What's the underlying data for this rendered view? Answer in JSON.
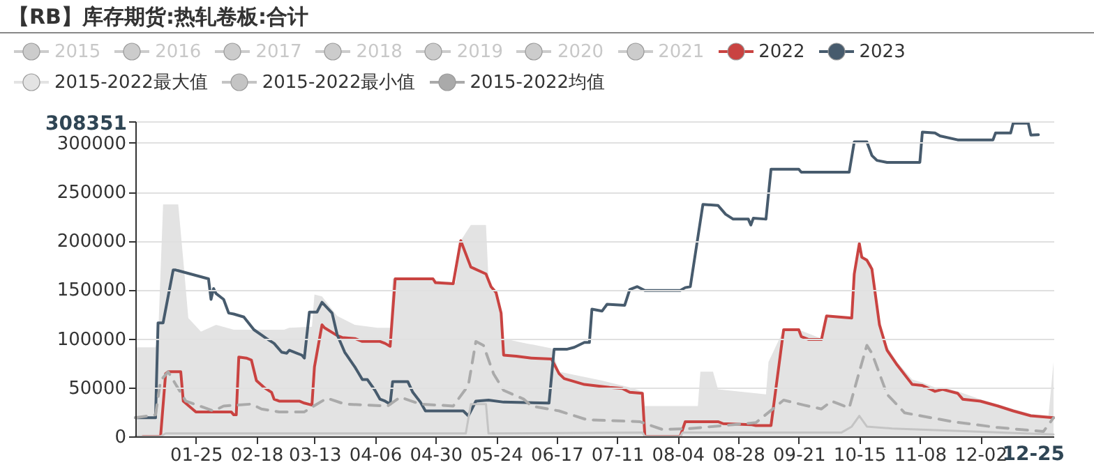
{
  "chart_data": {
    "type": "line",
    "title": "【RB】库存期货:热轧卷板:合计",
    "xlim": [
      "--01-01",
      "--12-31"
    ],
    "xticks": [
      {
        "value": "--01-25",
        "label": "01-25"
      },
      {
        "value": "--02-18",
        "label": "02-18"
      },
      {
        "value": "--03-13",
        "label": "03-13"
      },
      {
        "value": "--04-06",
        "label": "04-06"
      },
      {
        "value": "--04-30",
        "label": "04-30"
      },
      {
        "value": "--05-24",
        "label": "05-24"
      },
      {
        "value": "--06-17",
        "label": "06-17"
      },
      {
        "value": "--07-11",
        "label": "07-11"
      },
      {
        "value": "--08-04",
        "label": "08-04"
      },
      {
        "value": "--08-28",
        "label": "08-28"
      },
      {
        "value": "--09-21",
        "label": "09-21"
      },
      {
        "value": "--10-15",
        "label": "10-15"
      },
      {
        "value": "--11-08",
        "label": "11-08"
      },
      {
        "value": "--12-02",
        "label": "12-02"
      }
    ],
    "ylim": [
      0,
      322000
    ],
    "yticks": [
      0,
      50000,
      100000,
      150000,
      200000,
      250000,
      300000,
      {
        "value": 322000,
        "label": null
      }
    ],
    "grid": "y",
    "legend": "top left",
    "annotations": [
      "308351",
      "12-25"
    ],
    "series": [
      {
        "name": "2015",
        "color": "#cccccc"
      },
      {
        "name": "2016",
        "color": "#cccccc"
      },
      {
        "name": "2017",
        "color": "#cccccc"
      },
      {
        "name": "2018",
        "color": "#cccccc"
      },
      {
        "name": "2019",
        "color": "#cccccc"
      },
      {
        "name": "2020",
        "color": "#cccccc"
      },
      {
        "name": "2021",
        "color": "#cccccc"
      },
      {
        "name": "2022",
        "color": "#c94341",
        "x": [
          "--01-04",
          "--01-11",
          "--01-13",
          "--01-14",
          "--01-19",
          "--01-20",
          "--01-25",
          "--02-08",
          "--02-09",
          "--02-10",
          "--02-11",
          "--02-14",
          "--02-16",
          "--02-18",
          "--02-21",
          "--02-24",
          "--02-25",
          "--02-27",
          "--03-07",
          "--03-09",
          "--03-12",
          "--03-13",
          "--03-16",
          "--03-17",
          "--03-22",
          "--03-24",
          "--03-29",
          "--04-01",
          "--04-08",
          "--04-10",
          "--04-12",
          "--04-14",
          "--04-29",
          "--04-30",
          "--05-07",
          "--05-10",
          "--05-14",
          "--05-20",
          "--05-22",
          "--05-24",
          "--05-26",
          "--05-27",
          "--06-01",
          "--06-07",
          "--06-15",
          "--06-18",
          "--06-20",
          "--06-28",
          "--07-08",
          "--07-13",
          "--07-16",
          "--07-21",
          "--07-22",
          "--08-05",
          "--08-07",
          "--08-20",
          "--08-22",
          "--09-02",
          "--09-04",
          "--09-10",
          "--09-15",
          "--09-21",
          "--09-22",
          "--09-25",
          "--09-30",
          "--10-02",
          "--10-12",
          "--10-13",
          "--10-15",
          "--10-16",
          "--10-18",
          "--10-20",
          "--10-23",
          "--10-26",
          "--10-30",
          "--11-05",
          "--11-09",
          "--11-14",
          "--11-17",
          "--11-23",
          "--11-25",
          "--12-02",
          "--12-09",
          "--12-15",
          "--12-22",
          "--12-31"
        ],
        "values": [
          0,
          0,
          64000,
          66000,
          66000,
          36000,
          25000,
          25000,
          22000,
          22000,
          81000,
          80000,
          78000,
          57000,
          50000,
          45000,
          38000,
          36000,
          36000,
          34000,
          32000,
          71000,
          114000,
          111000,
          103000,
          101000,
          100000,
          97000,
          97000,
          95000,
          92000,
          161000,
          161000,
          157000,
          156000,
          200000,
          173000,
          166000,
          153000,
          147000,
          126000,
          83000,
          82000,
          80000,
          79000,
          64000,
          59000,
          53000,
          50000,
          49000,
          45000,
          44000,
          0,
          0,
          15000,
          15000,
          13000,
          12000,
          11000,
          11000,
          109000,
          109000,
          102000,
          99000,
          99000,
          123000,
          121000,
          166000,
          197000,
          183000,
          180000,
          171000,
          114000,
          88000,
          73000,
          53000,
          52000,
          46000,
          48000,
          44000,
          38000,
          36000,
          31000,
          26000,
          21000,
          19000
        ]
      },
      {
        "name": "2023",
        "color": "#475b6d",
        "x": [
          "--01-01",
          "--01-09",
          "--01-10",
          "--01-12",
          "--01-16",
          "--01-17",
          "--01-30",
          "--01-31",
          "--02-01",
          "--02-02",
          "--02-05",
          "--02-07",
          "--02-09",
          "--02-13",
          "--02-17",
          "--02-22",
          "--02-25",
          "--02-28",
          "--03-02",
          "--03-03",
          "--03-08",
          "--03-09",
          "--03-11",
          "--03-14",
          "--03-16",
          "--03-20",
          "--03-22",
          "--03-25",
          "--03-29",
          "--04-01",
          "--04-03",
          "--04-06",
          "--04-08",
          "--04-10",
          "--04-12",
          "--04-13",
          "--04-19",
          "--04-21",
          "--04-24",
          "--04-26",
          "--05-11",
          "--05-13",
          "--05-16",
          "--05-21",
          "--05-27",
          "--06-14",
          "--06-16",
          "--06-21",
          "--06-24",
          "--06-28",
          "--06-30",
          "--07-01",
          "--07-05",
          "--07-07",
          "--07-14",
          "--07-16",
          "--07-19",
          "--07-22",
          "--08-05",
          "--08-07",
          "--08-09",
          "--08-14",
          "--08-20",
          "--08-23",
          "--08-26",
          "--09-01",
          "--09-02",
          "--09-03",
          "--09-08",
          "--09-10",
          "--09-21",
          "--09-22",
          "--10-11",
          "--10-13",
          "--10-18",
          "--10-20",
          "--10-22",
          "--10-26",
          "--11-08",
          "--11-09",
          "--11-14",
          "--11-16",
          "--11-23",
          "--12-07",
          "--12-08",
          "--12-14",
          "--12-15",
          "--12-21",
          "--12-22",
          "--12-25"
        ],
        "values": [
          19000,
          19000,
          116000,
          116000,
          170000,
          170000,
          161000,
          140000,
          151000,
          146000,
          140000,
          126000,
          125000,
          122000,
          109000,
          100000,
          95000,
          86000,
          85000,
          88000,
          83000,
          80000,
          127000,
          127000,
          137000,
          126000,
          104000,
          86000,
          71000,
          58000,
          58000,
          47000,
          38000,
          36000,
          33000,
          56000,
          56000,
          45000,
          35000,
          26000,
          26000,
          21000,
          36000,
          37000,
          35000,
          34000,
          89000,
          89000,
          91000,
          96000,
          96000,
          130000,
          128000,
          135000,
          134000,
          150000,
          153000,
          149000,
          149000,
          152000,
          153000,
          237000,
          236000,
          227000,
          222000,
          222000,
          216000,
          223000,
          222000,
          273000,
          273000,
          270000,
          270000,
          301000,
          301000,
          287000,
          282000,
          280000,
          280000,
          311000,
          310000,
          307000,
          303000,
          303000,
          310000,
          310000,
          320000,
          320000,
          308000,
          308351
        ]
      },
      {
        "name": "2015-2022最大值",
        "color": "#e3e3e3",
        "type": "area",
        "x": [
          "--01-01",
          "--01-09",
          "--01-10",
          "--01-12",
          "--01-18",
          "--01-20",
          "--01-22",
          "--01-27",
          "--02-02",
          "--02-09",
          "--03-01",
          "--03-03",
          "--03-12",
          "--03-13",
          "--03-16",
          "--03-22",
          "--03-29",
          "--04-07",
          "--04-12",
          "--04-13",
          "--04-24",
          "--05-08",
          "--05-10",
          "--05-14",
          "--05-20",
          "--05-21",
          "--05-22",
          "--05-24",
          "--05-26",
          "--05-27",
          "--06-05",
          "--06-15",
          "--06-18",
          "--07-05",
          "--07-16",
          "--07-21",
          "--07-22",
          "--08-12",
          "--08-13",
          "--08-18",
          "--08-20",
          "--09-08",
          "--09-09",
          "--09-15",
          "--09-21",
          "--09-30",
          "--10-02",
          "--10-12",
          "--10-13",
          "--10-15",
          "--10-16",
          "--10-18",
          "--10-20",
          "--10-23",
          "--10-26",
          "--10-30",
          "--11-05",
          "--11-09",
          "--11-14",
          "--11-17",
          "--11-23",
          "--12-02",
          "--12-15",
          "--12-22",
          "--12-29",
          "--12-31"
        ],
        "values": [
          91000,
          91000,
          100000,
          237000,
          237000,
          180000,
          121000,
          107000,
          114000,
          109000,
          109000,
          111000,
          112000,
          145000,
          143000,
          123000,
          114000,
          111000,
          111000,
          161000,
          161000,
          157000,
          200000,
          216000,
          216000,
          160000,
          153000,
          147000,
          126000,
          100000,
          95000,
          90000,
          66000,
          57000,
          50000,
          46000,
          31000,
          31000,
          66000,
          66000,
          48000,
          43000,
          76000,
          109000,
          109000,
          100000,
          123000,
          121000,
          166000,
          197000,
          185000,
          182000,
          175000,
          120000,
          92000,
          76000,
          58000,
          55000,
          50000,
          50000,
          46000,
          38000,
          28000,
          23000,
          21000,
          76000
        ]
      },
      {
        "name": "2015-2022最小值",
        "color": "#c4c4c4",
        "x": [
          "--01-01",
          "--01-11",
          "--01-13",
          "--05-12",
          "--05-14",
          "--05-20",
          "--05-21",
          "--07-21",
          "--07-22",
          "--08-05",
          "--08-06",
          "--10-08",
          "--10-12",
          "--10-15",
          "--10-18",
          "--10-28",
          "--12-31"
        ],
        "values": [
          0,
          0,
          3000,
          3000,
          33000,
          33000,
          3000,
          4000,
          0,
          0,
          4000,
          4000,
          10000,
          21000,
          10000,
          8000,
          2000
        ]
      },
      {
        "name": "2015-2022均值",
        "color": "#aaaaaa",
        "line_style": "dashed",
        "x": [
          "--01-01",
          "--01-09",
          "--01-11",
          "--01-14",
          "--01-21",
          "--02-01",
          "--02-05",
          "--02-16",
          "--02-20",
          "--02-27",
          "--03-09",
          "--03-14",
          "--03-18",
          "--03-25",
          "--04-11",
          "--04-16",
          "--04-24",
          "--05-07",
          "--05-13",
          "--05-16",
          "--05-19",
          "--05-23",
          "--05-27",
          "--06-04",
          "--06-07",
          "--06-18",
          "--06-29",
          "--07-20",
          "--07-29",
          "--08-09",
          "--09-04",
          "--09-15",
          "--09-23",
          "--09-30",
          "--10-04",
          "--10-11",
          "--10-15",
          "--10-18",
          "--10-20",
          "--10-26",
          "--11-02",
          "--11-21",
          "--12-09",
          "--12-27",
          "--12-31"
        ],
        "values": [
          19000,
          22000,
          57000,
          66000,
          36000,
          26000,
          31000,
          33000,
          28000,
          25000,
          25000,
          33000,
          39000,
          33000,
          31000,
          40000,
          33000,
          31000,
          52000,
          97000,
          93000,
          64000,
          47000,
          38000,
          31000,
          26000,
          17000,
          15000,
          7000,
          8000,
          14000,
          37000,
          32000,
          28000,
          36000,
          29000,
          66000,
          93000,
          85000,
          43000,
          24000,
          15000,
          9000,
          5000,
          19000
        ]
      }
    ]
  }
}
